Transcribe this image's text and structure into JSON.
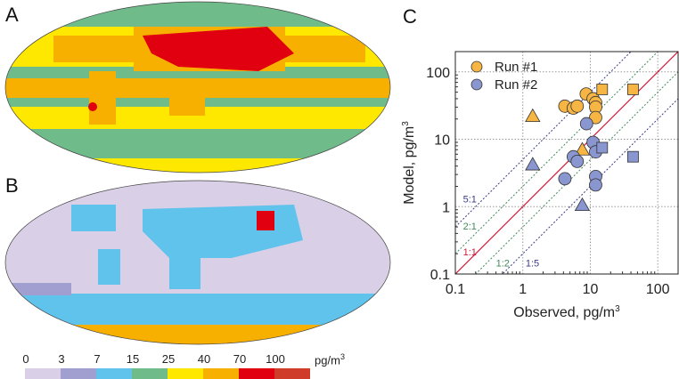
{
  "panels": {
    "a": "A",
    "b": "B",
    "c": "C"
  },
  "colorbar": {
    "ticks": [
      "0",
      "3",
      "7",
      "15",
      "25",
      "40",
      "70",
      "100"
    ],
    "unit": "pg/m",
    "unit_sup": "3",
    "colors": [
      "#d9cfe6",
      "#a09fcf",
      "#5fc3ec",
      "#6fbb8a",
      "#ffe800",
      "#f8b000",
      "#e00010",
      "#d03c2a"
    ]
  },
  "chart_data": {
    "type": "scatter",
    "xscale": "log",
    "yscale": "log",
    "xlim": [
      0.1,
      200
    ],
    "ylim": [
      0.1,
      200
    ],
    "xlabel": "Observed, pg/m",
    "ylabel": "Model, pg/m",
    "unit_sup": "3",
    "xticks": [
      "0.1",
      "1",
      "10",
      "100"
    ],
    "yticks": [
      "0.1",
      "1",
      "10",
      "100"
    ],
    "grid": true,
    "legend_position": "top-left",
    "ratio_lines": [
      {
        "label": "5:1",
        "ratio": 5,
        "color": "#3b3b8a"
      },
      {
        "label": "2:1",
        "ratio": 2,
        "color": "#3f8a5a"
      },
      {
        "label": "1:1",
        "ratio": 1,
        "color": "#cc1b3a"
      },
      {
        "label": "1:2",
        "ratio": 0.5,
        "color": "#3f8a5a"
      },
      {
        "label": "1:5",
        "ratio": 0.2,
        "color": "#3b3b8a"
      }
    ],
    "series": [
      {
        "name": "Run #1",
        "color": "#f7b543",
        "circles": [
          [
            4.2,
            31
          ],
          [
            5.6,
            29
          ],
          [
            6.4,
            31
          ],
          [
            8.7,
            47
          ],
          [
            11,
            40
          ],
          [
            12,
            35
          ],
          [
            12,
            30
          ],
          [
            12,
            21
          ]
        ],
        "squares": [
          [
            15,
            55
          ],
          [
            43,
            55
          ]
        ],
        "triangles": [
          [
            1.4,
            22
          ],
          [
            7.6,
            7
          ]
        ]
      },
      {
        "name": "Run #2",
        "color": "#8a96d0",
        "circles": [
          [
            8.8,
            17
          ],
          [
            11,
            9
          ],
          [
            12,
            6.5
          ],
          [
            5.6,
            5.5
          ],
          [
            6.4,
            4.7
          ],
          [
            4.2,
            2.6
          ],
          [
            12,
            2.8
          ],
          [
            12,
            2.1
          ]
        ],
        "squares": [
          [
            15,
            7.5
          ],
          [
            43,
            5.5
          ]
        ],
        "triangles": [
          [
            1.4,
            4.2
          ],
          [
            7.6,
            1.05
          ]
        ]
      }
    ]
  }
}
